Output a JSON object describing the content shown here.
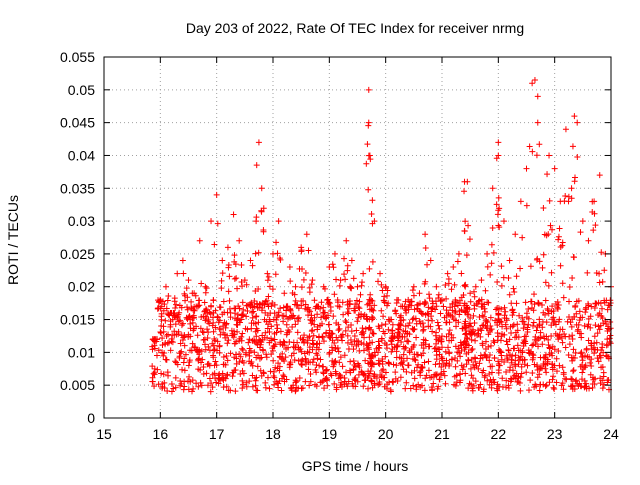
{
  "chart_data": {
    "type": "scatter",
    "title": "Day 203 of 2022, Rate Of TEC Index for receiver nrmg",
    "xlabel": "GPS time / hours",
    "ylabel": "ROTI / TECUs",
    "xlim": [
      15,
      24
    ],
    "ylim": [
      0,
      0.055
    ],
    "xticks": [
      15,
      16,
      17,
      18,
      19,
      20,
      21,
      22,
      23,
      24
    ],
    "xtick_labels": [
      "15",
      "16",
      "17",
      "18",
      "19",
      "20",
      "21",
      "22",
      "23",
      "24"
    ],
    "yticks": [
      0,
      0.005,
      0.01,
      0.015,
      0.02,
      0.025,
      0.03,
      0.035,
      0.04,
      0.045,
      0.05,
      0.055
    ],
    "ytick_labels": [
      "0",
      "0.005",
      "0.01",
      "0.015",
      "0.02",
      "0.025",
      "0.03",
      "0.035",
      "0.04",
      "0.045",
      "0.05",
      "0.055"
    ],
    "marker": "+",
    "color": "#ff0000",
    "grid": true,
    "series": [
      {
        "name": "ROTI",
        "x": [
          15.9,
          16.0,
          16.1,
          16.2,
          16.3,
          16.4,
          16.5,
          16.6,
          16.7,
          16.8,
          16.9,
          17.0,
          17.1,
          17.2,
          17.3,
          17.4,
          17.5,
          17.6,
          17.7,
          17.8,
          17.9,
          18.0,
          18.1,
          18.2,
          18.3,
          18.4,
          18.5,
          18.6,
          18.7,
          18.8,
          18.9,
          19.0,
          19.1,
          19.2,
          19.3,
          19.4,
          19.5,
          19.6,
          19.7,
          19.8,
          19.9,
          20.0,
          20.1,
          20.2,
          20.3,
          20.4,
          20.5,
          20.6,
          20.7,
          20.8,
          20.9,
          21.0,
          21.1,
          21.2,
          21.3,
          21.4,
          21.5,
          21.6,
          21.7,
          21.8,
          21.9,
          22.0,
          22.1,
          22.2,
          22.3,
          22.4,
          22.5,
          22.6,
          22.7,
          22.8,
          22.9,
          23.0,
          23.1,
          23.2,
          23.3,
          23.4,
          23.5,
          23.6,
          23.7,
          23.8,
          23.9,
          24.0,
          17.75,
          19.7,
          19.72,
          22.65,
          22.7,
          23.35,
          22.0,
          21.45
        ],
        "y": [
          0.012,
          0.018,
          0.02,
          0.016,
          0.022,
          0.024,
          0.021,
          0.019,
          0.027,
          0.02,
          0.03,
          0.034,
          0.024,
          0.026,
          0.031,
          0.027,
          0.021,
          0.024,
          0.03,
          0.035,
          0.022,
          0.025,
          0.03,
          0.019,
          0.023,
          0.02,
          0.026,
          0.028,
          0.021,
          0.017,
          0.02,
          0.023,
          0.025,
          0.021,
          0.027,
          0.024,
          0.02,
          0.022,
          0.045,
          0.03,
          0.022,
          0.02,
          0.015,
          0.018,
          0.017,
          0.018,
          0.02,
          0.019,
          0.028,
          0.024,
          0.02,
          0.018,
          0.022,
          0.023,
          0.025,
          0.036,
          0.019,
          0.02,
          0.021,
          0.025,
          0.035,
          0.042,
          0.03,
          0.024,
          0.028,
          0.033,
          0.038,
          0.051,
          0.045,
          0.032,
          0.04,
          0.038,
          0.033,
          0.044,
          0.035,
          0.045,
          0.03,
          0.027,
          0.033,
          0.037,
          0.025,
          0.02,
          0.042,
          0.05,
          0.04,
          0.0515,
          0.049,
          0.046,
          0.04,
          0.036
        ]
      }
    ]
  }
}
